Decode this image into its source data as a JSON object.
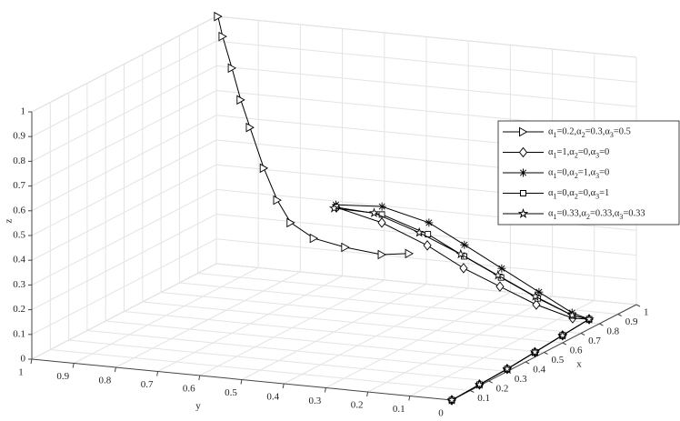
{
  "chart_data": {
    "type": "line3d",
    "xlabel": "x",
    "ylabel": "y",
    "zlabel": "z",
    "xlim": [
      0,
      1
    ],
    "ylim": [
      0,
      1
    ],
    "zlim": [
      0,
      1
    ],
    "xticks": [
      0.1,
      0.2,
      0.3,
      0.4,
      0.5,
      0.6,
      0.7,
      0.8,
      0.9,
      1
    ],
    "yticks": [
      0,
      0.1,
      0.2,
      0.3,
      0.4,
      0.5,
      0.6,
      0.7,
      0.8,
      0.9,
      1
    ],
    "zticks": [
      0,
      0.1,
      0.2,
      0.3,
      0.4,
      0.5,
      0.6,
      0.7,
      0.8,
      0.9,
      1
    ],
    "grid": true,
    "legend": "right",
    "series": [
      {
        "name": "α1=0.2,α2=0.3,α3=0.5",
        "color": "#000000",
        "marker": "triangle-right",
        "x": [
          1,
          1,
          1,
          1,
          1,
          1,
          1,
          1,
          1,
          1,
          1,
          1
        ],
        "y": [
          0.996,
          0.985,
          0.963,
          0.942,
          0.92,
          0.887,
          0.855,
          0.823,
          0.768,
          0.693,
          0.606,
          0.541
        ],
        "z": [
          1,
          0.921,
          0.797,
          0.672,
          0.564,
          0.405,
          0.281,
          0.195,
          0.141,
          0.117,
          0.102,
          0.117
        ]
      },
      {
        "name": "α1=1,α2=0,α3=0",
        "color": "#000000",
        "marker": "diamond",
        "x": [
          0.51,
          0.588,
          0.623,
          0.628,
          0.65,
          0.674,
          0.716,
          0.744,
          0.6,
          0.45,
          0.3,
          0.15,
          0
        ],
        "y": [
          0.499,
          0.425,
          0.332,
          0.248,
          0.171,
          0.095,
          0.027,
          0,
          0,
          0,
          0,
          0,
          0
        ],
        "z": [
          0.5,
          0.42,
          0.33,
          0.25,
          0.18,
          0.11,
          0.05,
          0.04,
          0.03,
          0.02,
          0.01,
          0.005,
          0
        ]
      },
      {
        "name": "α1=0,α2=1,α3=0",
        "color": "#000000",
        "marker": "asterisk",
        "x": [
          0.51,
          0.6,
          0.65,
          0.66,
          0.68,
          0.7,
          0.72,
          0.744,
          0.6,
          0.45,
          0.3,
          0.15,
          0
        ],
        "y": [
          0.5,
          0.43,
          0.34,
          0.26,
          0.18,
          0.1,
          0.03,
          0,
          0,
          0,
          0,
          0,
          0
        ],
        "z": [
          0.51,
          0.48,
          0.41,
          0.33,
          0.24,
          0.15,
          0.07,
          0.04,
          0.03,
          0.02,
          0.01,
          0.005,
          0
        ]
      },
      {
        "name": "α1=0,α2=0,α3=1",
        "color": "#000000",
        "marker": "square",
        "x": [
          0.51,
          0.595,
          0.635,
          0.645,
          0.665,
          0.687,
          0.718,
          0.744,
          0.6,
          0.45,
          0.3,
          0.15,
          0
        ],
        "y": [
          0.5,
          0.428,
          0.336,
          0.254,
          0.175,
          0.097,
          0.028,
          0,
          0,
          0,
          0,
          0,
          0
        ],
        "z": [
          0.5,
          0.45,
          0.37,
          0.29,
          0.21,
          0.13,
          0.06,
          0.04,
          0.03,
          0.02,
          0.01,
          0.005,
          0
        ]
      },
      {
        "name": "α1=0.33,α2=0.33,α3=0.33",
        "color": "#000000",
        "marker": "star",
        "x": [
          0.5,
          0.58,
          0.62,
          0.64,
          0.66,
          0.68,
          0.72,
          0.744,
          0.6,
          0.45,
          0.3,
          0.15,
          0
        ],
        "y": [
          0.5,
          0.44,
          0.35,
          0.26,
          0.18,
          0.1,
          0.03,
          0,
          0,
          0,
          0,
          0,
          0
        ],
        "z": [
          0.5,
          0.46,
          0.38,
          0.3,
          0.22,
          0.14,
          0.06,
          0.04,
          0.03,
          0.02,
          0.01,
          0.005,
          0
        ]
      }
    ]
  }
}
